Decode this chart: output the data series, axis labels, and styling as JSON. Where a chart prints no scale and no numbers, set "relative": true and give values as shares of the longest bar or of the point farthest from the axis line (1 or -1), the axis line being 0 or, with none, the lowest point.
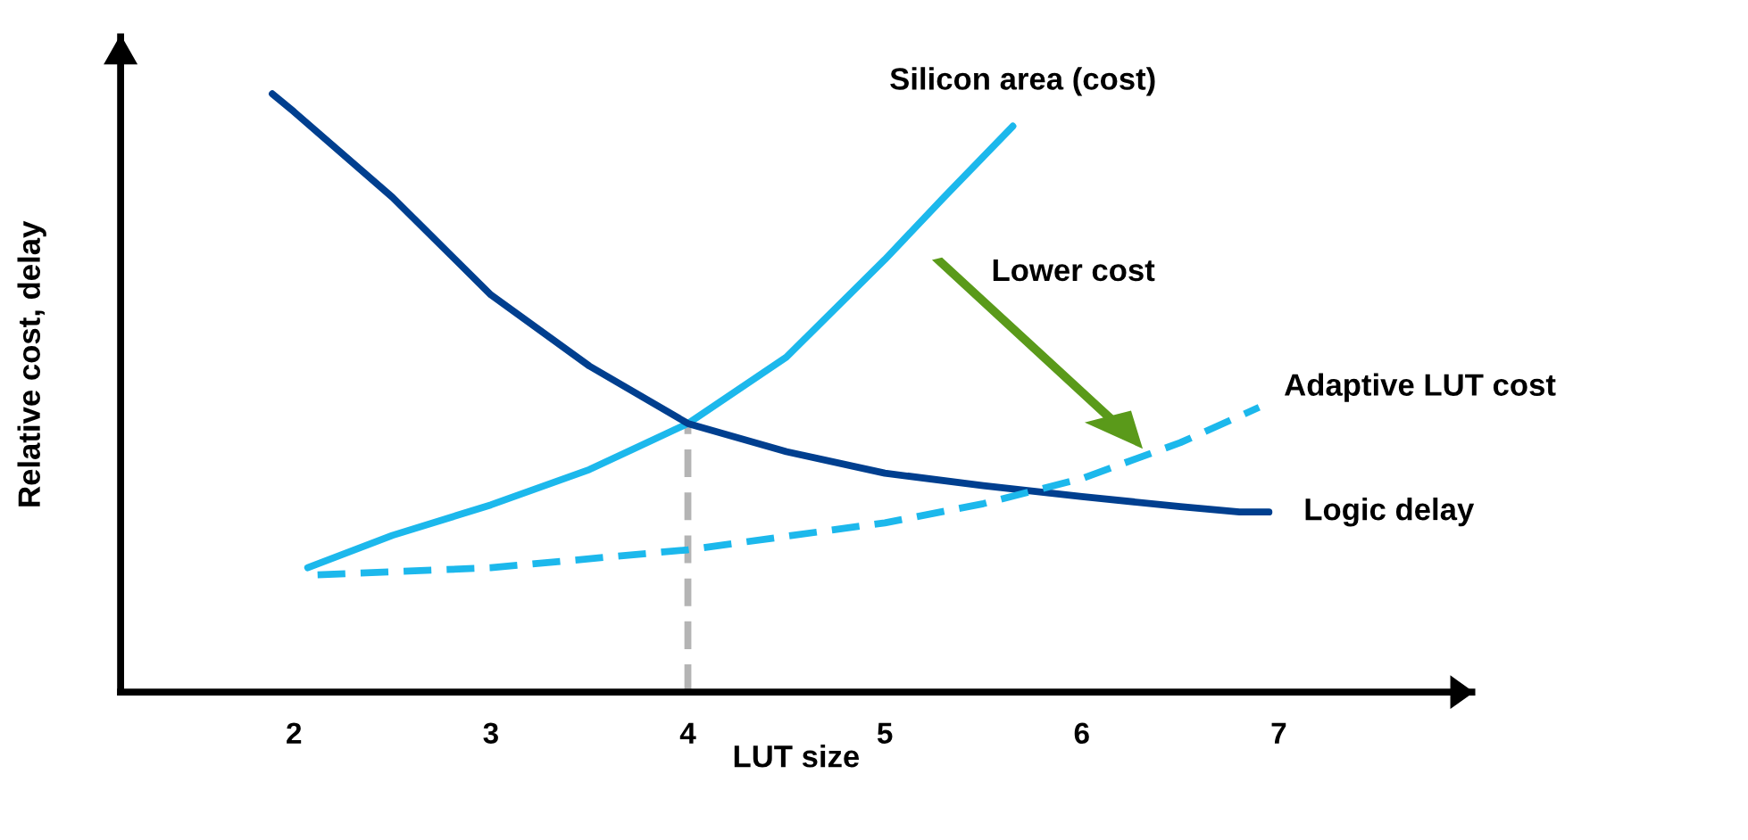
{
  "chart_data": {
    "type": "line",
    "relative": true,
    "xlabel": "LUT size",
    "ylabel": "Relative cost, delay",
    "xlim": [
      1.12,
      7.98
    ],
    "xticks": [
      2,
      3,
      4,
      5,
      6,
      7
    ],
    "grid": false,
    "legend": false,
    "marker": "none",
    "series": [
      {
        "name": "Silicon area (cost)",
        "color": "#1cb8ec",
        "line_style": "solid",
        "x": [
          2.07,
          2.5,
          3,
          3.5,
          4,
          4.5,
          5,
          5.3,
          5.65
        ],
        "values": [
          0.208,
          0.262,
          0.313,
          0.372,
          0.449,
          0.56,
          0.723,
          0.827,
          0.946
        ]
      },
      {
        "name": "Logic delay",
        "color": "#003f8f",
        "line_style": "solid",
        "x": [
          1.89,
          2,
          2.5,
          3,
          3.5,
          4,
          4.5,
          5,
          5.5,
          6,
          6.5,
          6.8,
          6.95
        ],
        "values": [
          1.0,
          0.97,
          0.827,
          0.664,
          0.545,
          0.449,
          0.402,
          0.366,
          0.345,
          0.327,
          0.31,
          0.301,
          0.301
        ]
      },
      {
        "name": "Adaptive LUT cost",
        "color": "#1cb8ec",
        "line_style": "dashed",
        "x": [
          2.12,
          3,
          4,
          5,
          5.5,
          6,
          6.5,
          6.9
        ],
        "values": [
          0.196,
          0.208,
          0.238,
          0.283,
          0.315,
          0.357,
          0.417,
          0.476
        ]
      }
    ],
    "ref_lines": [
      {
        "axis": "x",
        "value": 4,
        "color": "#b4b4b4",
        "line_style": "dashed"
      }
    ],
    "annotations": [
      "Lower cost"
    ]
  }
}
